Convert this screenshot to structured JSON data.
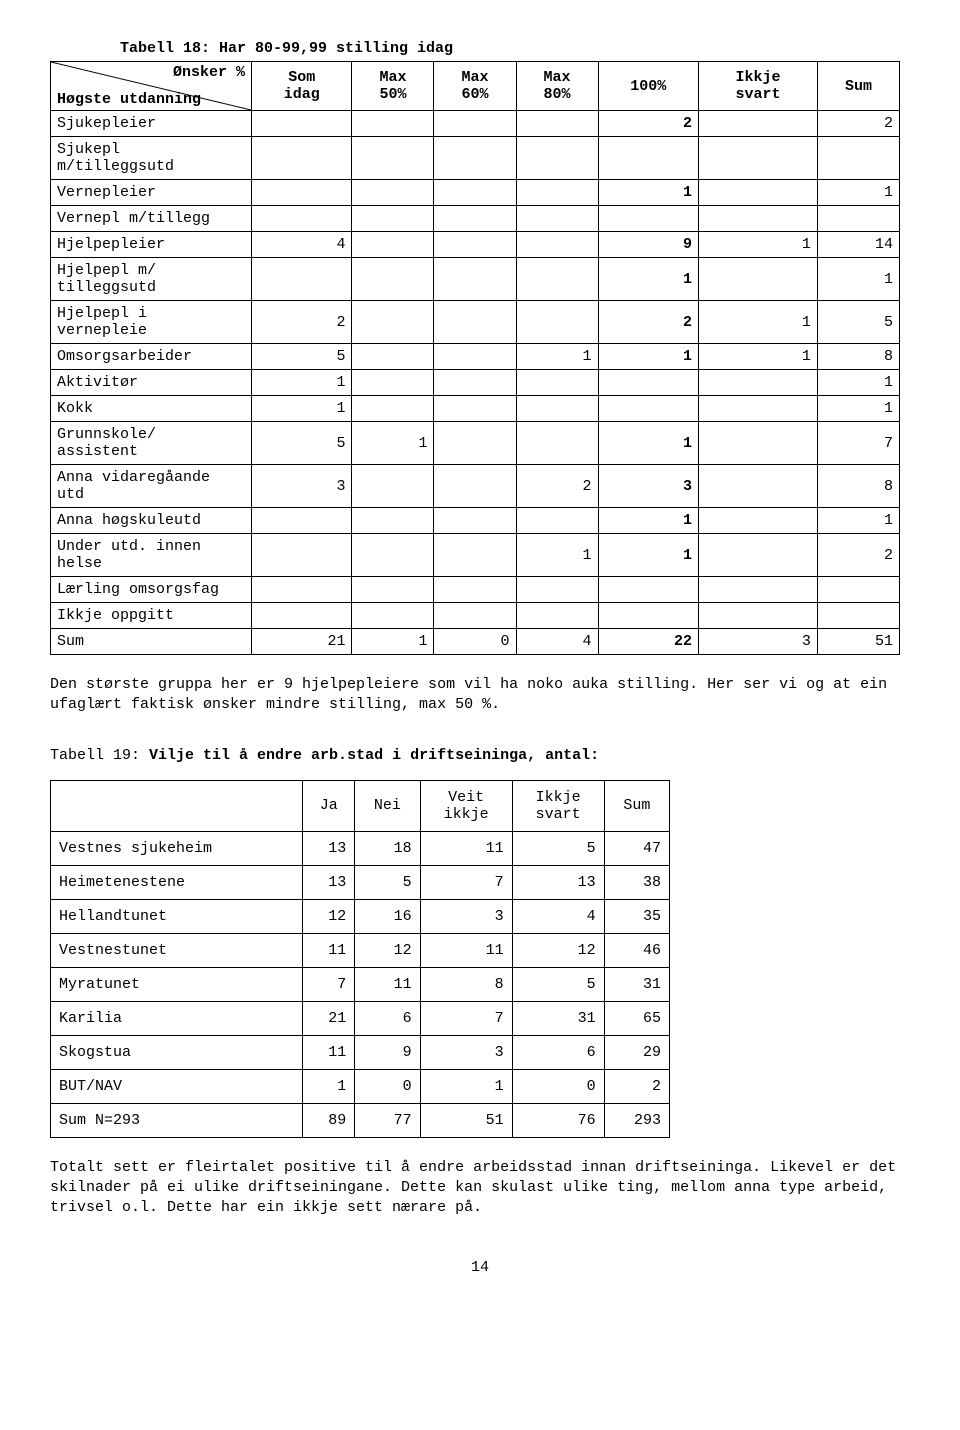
{
  "table18": {
    "title": "Tabell 18: Har 80-99,99 stilling idag",
    "diag_top": "Ønsker %",
    "diag_bottom": "Høgste utdanning",
    "cols": [
      "Som idag",
      "Max 50%",
      "Max 60%",
      "Max 80%",
      "100%",
      "Ikkje svart",
      "Sum"
    ],
    "rows": [
      {
        "label": "Sjukepleier",
        "c": [
          "",
          "",
          "",
          "",
          "2",
          "",
          "2"
        ]
      },
      {
        "label": "Sjukepl m/tilleggsutd",
        "c": [
          "",
          "",
          "",
          "",
          "",
          "",
          ""
        ]
      },
      {
        "label": "Vernepleier",
        "c": [
          "",
          "",
          "",
          "",
          "1",
          "",
          "1"
        ]
      },
      {
        "label": "Vernepl m/tillegg",
        "c": [
          "",
          "",
          "",
          "",
          "",
          "",
          ""
        ]
      },
      {
        "label": "Hjelpepleier",
        "c": [
          "4",
          "",
          "",
          "",
          "9",
          "1",
          "14"
        ]
      },
      {
        "label": "Hjelpepl m/ tilleggsutd",
        "c": [
          "",
          "",
          "",
          "",
          "1",
          "",
          "1"
        ]
      },
      {
        "label": "Hjelpepl i vernepleie",
        "c": [
          "2",
          "",
          "",
          "",
          "2",
          "1",
          "5"
        ]
      },
      {
        "label": "Omsorgsarbeider",
        "c": [
          "5",
          "",
          "",
          "1",
          "1",
          "1",
          "8"
        ]
      },
      {
        "label": "Aktivitør",
        "c": [
          "1",
          "",
          "",
          "",
          "",
          "",
          "1"
        ]
      },
      {
        "label": "Kokk",
        "c": [
          "1",
          "",
          "",
          "",
          "",
          "",
          "1"
        ]
      },
      {
        "label": "Grunnskole/ assistent",
        "c": [
          "5",
          "1",
          "",
          "",
          "1",
          "",
          "7"
        ]
      },
      {
        "label": "Anna vidaregåande utd",
        "c": [
          "3",
          "",
          "",
          "2",
          "3",
          "",
          "8"
        ]
      },
      {
        "label": "Anna høgskuleutd",
        "c": [
          "",
          "",
          "",
          "",
          "1",
          "",
          "1"
        ]
      },
      {
        "label": "Under utd. innen helse",
        "c": [
          "",
          "",
          "",
          "1",
          "1",
          "",
          "2"
        ]
      },
      {
        "label": "Lærling omsorgsfag",
        "c": [
          "",
          "",
          "",
          "",
          "",
          "",
          ""
        ]
      },
      {
        "label": "Ikkje oppgitt",
        "c": [
          "",
          "",
          "",
          "",
          "",
          "",
          ""
        ]
      }
    ],
    "sum": {
      "label": "Sum",
      "c": [
        "21",
        "1",
        "0",
        "4",
        "22",
        "3",
        "51"
      ]
    }
  },
  "para1": "Den største gruppa her er 9 hjelpepleiere som vil ha noko auka stilling. Her ser vi og at ein ufaglært faktisk ønsker mindre stilling, max 50 %.",
  "table19": {
    "title_prefix": "Tabell 19: ",
    "title_bold": "Vilje til å endre arb.stad i driftseininga, antal:",
    "cols": [
      "Ja",
      "Nei",
      "Veit ikkje",
      "Ikkje svart",
      "Sum"
    ],
    "rows": [
      {
        "label": "Vestnes sjukeheim",
        "c": [
          "13",
          "18",
          "11",
          "5",
          "47"
        ]
      },
      {
        "label": "Heimetenestene",
        "c": [
          "13",
          "5",
          "7",
          "13",
          "38"
        ]
      },
      {
        "label": "Hellandtunet",
        "c": [
          "12",
          "16",
          "3",
          "4",
          "35"
        ]
      },
      {
        "label": "Vestnestunet",
        "c": [
          "11",
          "12",
          "11",
          "12",
          "46"
        ]
      },
      {
        "label": "Myratunet",
        "c": [
          "7",
          "11",
          "8",
          "5",
          "31"
        ]
      },
      {
        "label": "Karilia",
        "c": [
          "21",
          "6",
          "7",
          "31",
          "65"
        ]
      },
      {
        "label": "Skogstua",
        "c": [
          "11",
          "9",
          "3",
          "6",
          "29"
        ]
      },
      {
        "label": "BUT/NAV",
        "c": [
          "1",
          "0",
          "1",
          "0",
          "2"
        ]
      }
    ],
    "sum": {
      "label": "Sum N=293",
      "c": [
        "89",
        "77",
        "51",
        "76",
        "293"
      ]
    }
  },
  "para2": "Totalt sett er fleirtalet positive til å endre arbeidsstad innan driftseininga. Likevel er det skilnader på ei ulike driftseiningane. Dette kan skulast ulike ting, mellom anna type arbeid, trivsel o.l. Dette har ein ikkje sett nærare på.",
  "page_number": "14",
  "bold_col_index": 4
}
